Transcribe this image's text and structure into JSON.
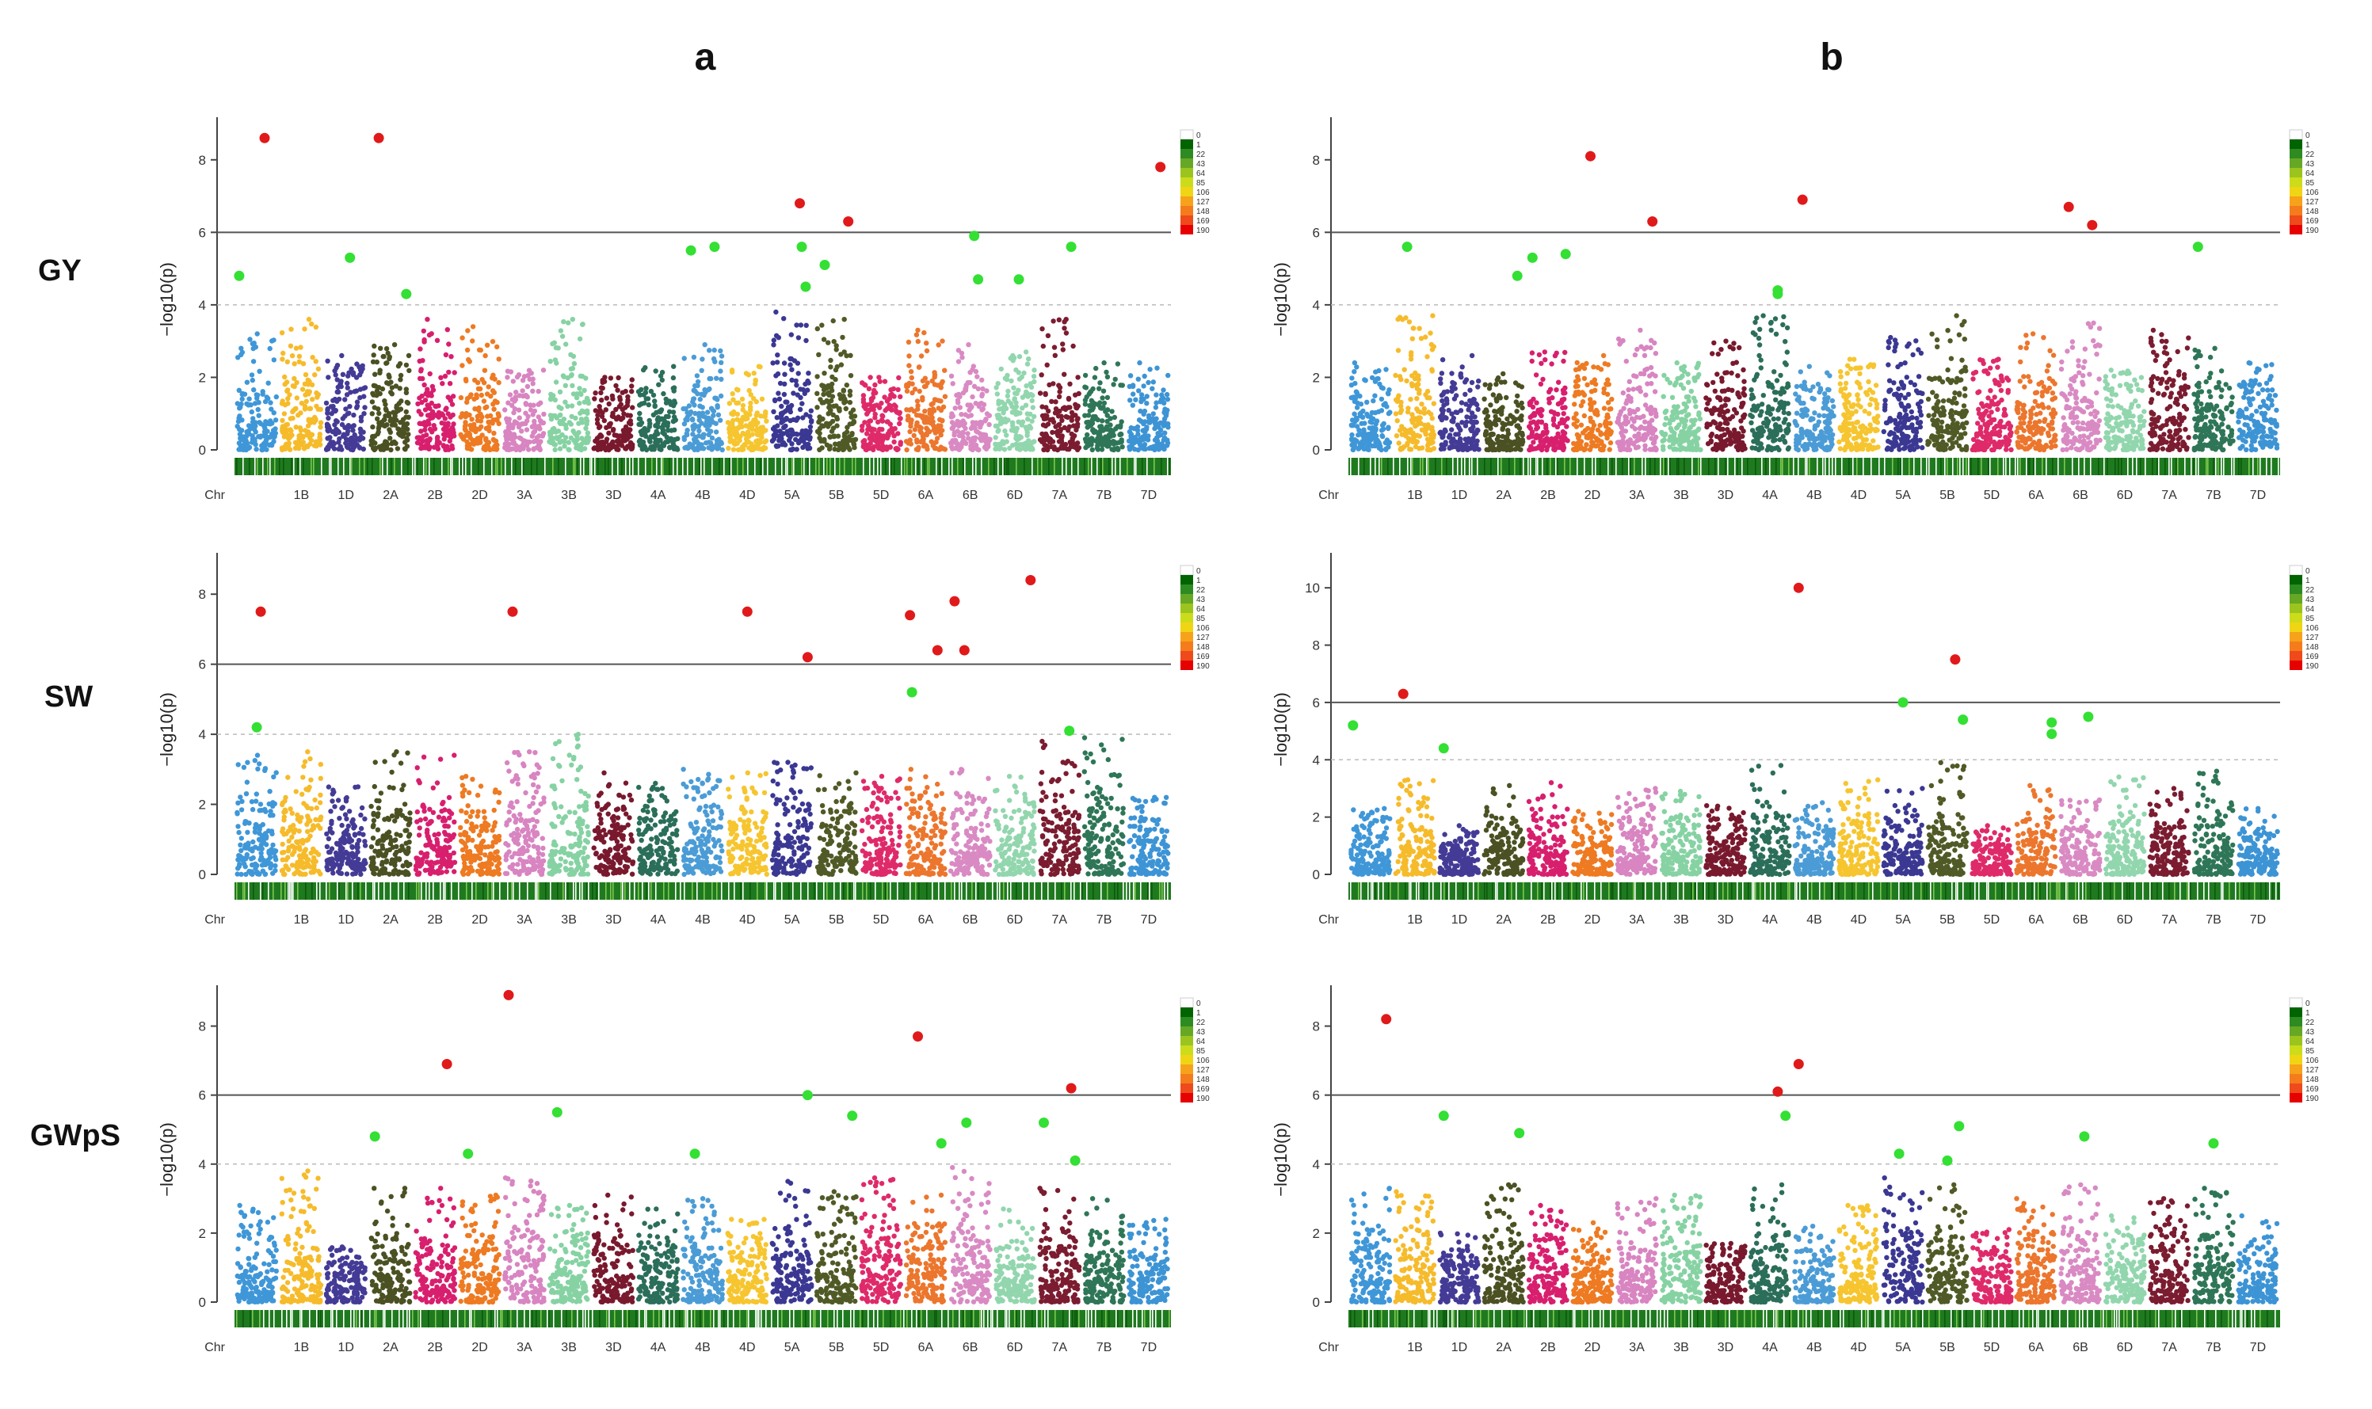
{
  "figure": {
    "column_labels": [
      "a",
      "b"
    ],
    "row_labels": [
      "GY",
      "SW",
      "GWpS"
    ]
  },
  "chart_data": {
    "type": "scatter",
    "subtype": "manhattan",
    "ylabel": "−log10(p)",
    "chr_axis_label": "Chr",
    "chromosomes": [
      "1A",
      "1B",
      "1D",
      "2A",
      "2B",
      "2D",
      "3A",
      "3B",
      "3D",
      "4A",
      "4B",
      "4D",
      "5A",
      "5B",
      "5D",
      "6A",
      "6B",
      "6D",
      "7A",
      "7B",
      "7D"
    ],
    "chromosome_colors": [
      "#3f97d8",
      "#f6bb2b",
      "#443b96",
      "#4b5122",
      "#d81f6e",
      "#ee7a22",
      "#d885c1",
      "#86d2a3",
      "#79192e",
      "#2b6e5a",
      "#4b9cd6",
      "#f6c52f",
      "#3b3893",
      "#505a26",
      "#df2a6a",
      "#ec762d",
      "#d98ac3",
      "#92d6ae",
      "#7b1c30",
      "#2e7657",
      "#3d94d5"
    ],
    "tick_labels": [
      "1B",
      "1D",
      "2A",
      "2B",
      "2D",
      "3A",
      "3B",
      "3D",
      "4A",
      "4B",
      "4D",
      "5A",
      "5B",
      "5D",
      "6A",
      "6B",
      "6D",
      "7A",
      "7B",
      "7D"
    ],
    "density_legend": {
      "labels": [
        "0",
        "1",
        "22",
        "43",
        "64",
        "85",
        "106",
        "127",
        "148",
        "169",
        "190"
      ],
      "colors": [
        "#ffffff",
        "#006400",
        "#2e8b22",
        "#66a825",
        "#9cc41e",
        "#ccdc1a",
        "#f0d515",
        "#f7a21b",
        "#f47c1c",
        "#ee4a1b",
        "#e60000"
      ]
    },
    "panels": [
      {
        "id": "a-GY",
        "column": "a",
        "trait": "GY",
        "ylim": [
          0,
          9
        ],
        "yticks": [
          0,
          2,
          4,
          6,
          8
        ],
        "threshold": 6,
        "suggestive": 4,
        "seed": 11,
        "background_peaks": [
          3.2,
          3.6,
          2.6,
          2.9,
          3.6,
          3.4,
          2.2,
          3.6,
          2.0,
          2.3,
          2.9,
          2.3,
          3.8,
          3.6,
          2.0,
          3.3,
          2.9,
          2.7,
          3.6,
          2.4,
          2.4
        ],
        "significant": [
          {
            "chr": "1A",
            "pos": 0.7,
            "value": 8.6
          },
          {
            "chr": "2A",
            "pos": 0.2,
            "value": 8.6
          },
          {
            "chr": "5A",
            "pos": 0.7,
            "value": 6.8
          },
          {
            "chr": "5B",
            "pos": 0.8,
            "value": 6.3
          },
          {
            "chr": "7D",
            "pos": 0.8,
            "value": 7.8
          }
        ],
        "suggestive_hits": [
          {
            "chr": "1A",
            "pos": 0.05,
            "value": 4.8
          },
          {
            "chr": "1D",
            "pos": 0.6,
            "value": 5.3
          },
          {
            "chr": "2A",
            "pos": 0.9,
            "value": 4.3
          },
          {
            "chr": "4B",
            "pos": 0.2,
            "value": 5.5
          },
          {
            "chr": "4B",
            "pos": 0.8,
            "value": 5.6
          },
          {
            "chr": "5A",
            "pos": 0.75,
            "value": 5.6
          },
          {
            "chr": "5A",
            "pos": 0.85,
            "value": 4.5
          },
          {
            "chr": "5B",
            "pos": 0.2,
            "value": 5.1
          },
          {
            "chr": "6B",
            "pos": 0.6,
            "value": 5.9
          },
          {
            "chr": "6B",
            "pos": 0.7,
            "value": 4.7
          },
          {
            "chr": "6D",
            "pos": 0.6,
            "value": 4.7
          },
          {
            "chr": "7A",
            "pos": 0.8,
            "value": 5.6
          }
        ]
      },
      {
        "id": "b-GY",
        "column": "b",
        "trait": "GY",
        "ylim": [
          0,
          9
        ],
        "yticks": [
          0,
          2,
          4,
          6,
          8
        ],
        "threshold": 6,
        "suggestive": 4,
        "seed": 23,
        "background_peaks": [
          2.4,
          3.7,
          2.6,
          2.1,
          2.7,
          2.6,
          3.3,
          2.4,
          3.0,
          3.7,
          2.3,
          2.5,
          3.1,
          3.7,
          2.5,
          3.2,
          3.5,
          2.2,
          3.3,
          2.8,
          2.4
        ],
        "significant": [
          {
            "chr": "2D",
            "pos": 0.45,
            "value": 8.1
          },
          {
            "chr": "3A",
            "pos": 0.9,
            "value": 6.3
          },
          {
            "chr": "4B",
            "pos": 0.2,
            "value": 6.9
          },
          {
            "chr": "6B",
            "pos": 0.2,
            "value": 6.7
          },
          {
            "chr": "6B",
            "pos": 0.8,
            "value": 6.2
          }
        ],
        "suggestive_hits": [
          {
            "chr": "1B",
            "pos": 0.3,
            "value": 5.6
          },
          {
            "chr": "2A",
            "pos": 0.85,
            "value": 4.8
          },
          {
            "chr": "2B",
            "pos": 0.1,
            "value": 5.3
          },
          {
            "chr": "2B",
            "pos": 0.95,
            "value": 5.4
          },
          {
            "chr": "4A",
            "pos": 0.7,
            "value": 4.4
          },
          {
            "chr": "4A",
            "pos": 0.7,
            "value": 4.3
          },
          {
            "chr": "7B",
            "pos": 0.1,
            "value": 5.6
          }
        ]
      },
      {
        "id": "a-SW",
        "column": "a",
        "trait": "SW",
        "ylim": [
          0,
          9
        ],
        "yticks": [
          0,
          2,
          4,
          6,
          8
        ],
        "threshold": 6,
        "suggestive": 4,
        "seed": 37,
        "background_peaks": [
          3.4,
          3.5,
          2.5,
          3.5,
          3.4,
          2.8,
          3.5,
          4.0,
          2.9,
          2.6,
          3.0,
          2.9,
          3.2,
          2.9,
          2.8,
          3.0,
          3.0,
          2.8,
          3.8,
          3.9,
          2.2
        ],
        "significant": [
          {
            "chr": "1A",
            "pos": 0.6,
            "value": 7.5
          },
          {
            "chr": "3A",
            "pos": 0.2,
            "value": 7.5
          },
          {
            "chr": "4D",
            "pos": 0.5,
            "value": 7.5
          },
          {
            "chr": "5A",
            "pos": 0.9,
            "value": 6.2
          },
          {
            "chr": "6A",
            "pos": 0.1,
            "value": 7.4
          },
          {
            "chr": "6A",
            "pos": 0.8,
            "value": 6.4
          },
          {
            "chr": "6B",
            "pos": 0.1,
            "value": 7.8
          },
          {
            "chr": "6B",
            "pos": 0.35,
            "value": 6.4
          },
          {
            "chr": "6D",
            "pos": 0.9,
            "value": 8.4
          }
        ],
        "suggestive_hits": [
          {
            "chr": "1A",
            "pos": 0.5,
            "value": 4.2
          },
          {
            "chr": "6A",
            "pos": 0.15,
            "value": 5.2
          },
          {
            "chr": "7A",
            "pos": 0.75,
            "value": 4.1
          }
        ]
      },
      {
        "id": "b-SW",
        "column": "b",
        "trait": "SW",
        "ylim": [
          0,
          11
        ],
        "yticks": [
          0,
          2,
          4,
          6,
          8,
          10
        ],
        "threshold": 6,
        "suggestive": 4,
        "seed": 41,
        "background_peaks": [
          2.3,
          3.3,
          1.7,
          3.1,
          3.2,
          2.2,
          3.0,
          2.9,
          2.4,
          3.8,
          2.5,
          3.3,
          3.0,
          3.9,
          1.7,
          3.1,
          2.6,
          3.4,
          3.0,
          3.6,
          2.3
        ],
        "significant": [
          {
            "chr": "1B",
            "pos": 0.2,
            "value": 6.3
          },
          {
            "chr": "4B",
            "pos": 0.1,
            "value": 10.0
          },
          {
            "chr": "5B",
            "pos": 0.7,
            "value": 7.5
          }
        ],
        "suggestive_hits": [
          {
            "chr": "1A",
            "pos": 0.05,
            "value": 5.2
          },
          {
            "chr": "1D",
            "pos": 0.1,
            "value": 4.4
          },
          {
            "chr": "5A",
            "pos": 0.5,
            "value": 6.0
          },
          {
            "chr": "5B",
            "pos": 0.9,
            "value": 5.4
          },
          {
            "chr": "6A",
            "pos": 0.9,
            "value": 5.3
          },
          {
            "chr": "6A",
            "pos": 0.9,
            "value": 4.9
          },
          {
            "chr": "6B",
            "pos": 0.7,
            "value": 5.5
          }
        ]
      },
      {
        "id": "a-GWpS",
        "column": "a",
        "trait": "GWpS",
        "ylim": [
          0,
          9
        ],
        "yticks": [
          0,
          2,
          4,
          6,
          8
        ],
        "threshold": 6,
        "suggestive": 4,
        "seed": 53,
        "background_peaks": [
          2.8,
          3.8,
          1.6,
          3.3,
          3.3,
          3.1,
          3.6,
          2.8,
          3.1,
          2.7,
          3.0,
          2.4,
          3.5,
          3.2,
          3.6,
          3.1,
          3.9,
          2.7,
          3.3,
          3.0,
          2.4
        ],
        "significant": [
          {
            "chr": "2B",
            "pos": 0.8,
            "value": 6.9
          },
          {
            "chr": "3A",
            "pos": 0.1,
            "value": 8.9
          },
          {
            "chr": "6A",
            "pos": 0.3,
            "value": 7.7
          },
          {
            "chr": "7A",
            "pos": 0.8,
            "value": 6.2
          }
        ],
        "suggestive_hits": [
          {
            "chr": "2A",
            "pos": 0.1,
            "value": 4.8
          },
          {
            "chr": "2D",
            "pos": 0.2,
            "value": 4.3
          },
          {
            "chr": "3B",
            "pos": 0.2,
            "value": 5.5
          },
          {
            "chr": "4B",
            "pos": 0.3,
            "value": 4.3
          },
          {
            "chr": "5A",
            "pos": 0.9,
            "value": 6.0
          },
          {
            "chr": "5B",
            "pos": 0.9,
            "value": 5.4
          },
          {
            "chr": "6A",
            "pos": 0.9,
            "value": 4.6
          },
          {
            "chr": "6B",
            "pos": 0.4,
            "value": 5.2
          },
          {
            "chr": "7A",
            "pos": 0.1,
            "value": 5.2
          },
          {
            "chr": "7A",
            "pos": 0.9,
            "value": 4.1
          }
        ]
      },
      {
        "id": "b-GWpS",
        "column": "b",
        "trait": "GWpS",
        "ylim": [
          0,
          9
        ],
        "yticks": [
          0,
          2,
          4,
          6,
          8
        ],
        "threshold": 6,
        "suggestive": 4,
        "seed": 67,
        "background_peaks": [
          3.3,
          3.2,
          2.0,
          3.4,
          2.8,
          2.3,
          3.0,
          3.1,
          1.7,
          3.4,
          2.2,
          2.8,
          3.6,
          3.4,
          2.1,
          3.0,
          3.4,
          2.5,
          3.0,
          3.3,
          2.5
        ],
        "significant": [
          {
            "chr": "1A",
            "pos": 0.9,
            "value": 8.2
          },
          {
            "chr": "4A",
            "pos": 0.7,
            "value": 6.1
          },
          {
            "chr": "4B",
            "pos": 0.1,
            "value": 6.9
          }
        ],
        "suggestive_hits": [
          {
            "chr": "1D",
            "pos": 0.1,
            "value": 5.4
          },
          {
            "chr": "2A",
            "pos": 0.9,
            "value": 4.9
          },
          {
            "chr": "4A",
            "pos": 0.9,
            "value": 5.4
          },
          {
            "chr": "5A",
            "pos": 0.4,
            "value": 4.3
          },
          {
            "chr": "5B",
            "pos": 0.5,
            "value": 4.1
          },
          {
            "chr": "5B",
            "pos": 0.8,
            "value": 5.1
          },
          {
            "chr": "6B",
            "pos": 0.6,
            "value": 4.8
          },
          {
            "chr": "7B",
            "pos": 0.5,
            "value": 4.6
          }
        ]
      }
    ]
  }
}
